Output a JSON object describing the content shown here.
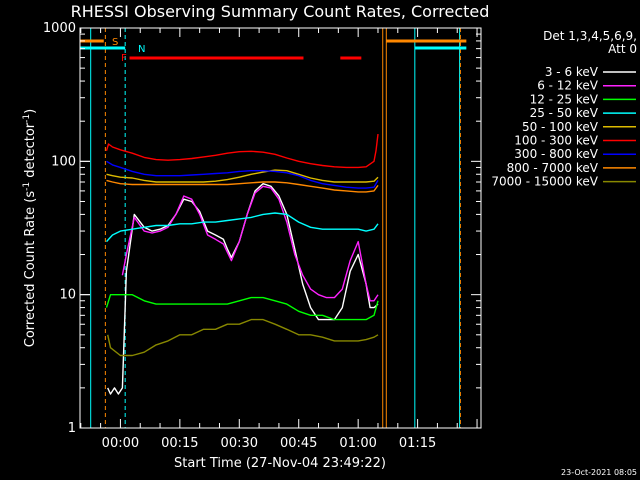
{
  "chart_data": {
    "type": "line",
    "title": "RHESSI Observing Summary Count Rates, Corrected",
    "xlabel": "Start Time (27-Nov-04 23:49:22)",
    "ylabel": "Corrected Count Rate (s⁻¹ detector⁻¹)",
    "ylabel_main": "Corrected Count Rate (s",
    "ylabel_sup1": "-1",
    "ylabel_mid": " detector",
    "ylabel_sup2": "-1",
    "ylabel_end": ")",
    "y_scale": "log",
    "ylim": [
      1,
      1000
    ],
    "xlim_minutes": [
      -10.2,
      91
    ],
    "x_ticks": [
      {
        "minutes": 0,
        "label": "00:00"
      },
      {
        "minutes": 15,
        "label": "00:15"
      },
      {
        "minutes": 30,
        "label": "00:30"
      },
      {
        "minutes": 45,
        "label": "00:45"
      },
      {
        "minutes": 60,
        "label": "01:00"
      },
      {
        "minutes": 75,
        "label": "01:15"
      }
    ],
    "y_ticks": [
      {
        "value": 1,
        "label": "1"
      },
      {
        "value": 10,
        "label": "10"
      },
      {
        "value": 100,
        "label": "100"
      },
      {
        "value": 1000,
        "label": "1000"
      }
    ],
    "legend_header": [
      "Det 1,3,4,5,6,9,",
      "Att 0"
    ],
    "legend_position": "right",
    "timestamp": "23-Oct-2021 08:05",
    "series": [
      {
        "name": "3 - 6 keV",
        "color": "#ffffff",
        "x": [
          -3.2,
          -2.5,
          -1.5,
          -0.5,
          0.5,
          1.5,
          3.5,
          6,
          8,
          10,
          12,
          14,
          16,
          18,
          20,
          22,
          24,
          26,
          27,
          28,
          30,
          32,
          34,
          36,
          38,
          40,
          42,
          44,
          46,
          48,
          50,
          52,
          54,
          56,
          58,
          60,
          62,
          63,
          64,
          65
        ],
        "y": [
          2,
          1.8,
          2,
          1.8,
          2,
          15,
          40,
          32,
          30,
          31,
          33,
          40,
          52,
          50,
          42,
          30,
          28,
          26,
          22,
          19,
          25,
          40,
          60,
          68,
          65,
          55,
          40,
          22,
          12,
          8,
          6.5,
          6.5,
          6.5,
          8,
          15,
          20,
          12,
          8,
          8,
          8.5
        ]
      },
      {
        "name": "6 - 12 keV",
        "color": "#ff22ff",
        "x": [
          0.5,
          1.5,
          3.5,
          6,
          8,
          10,
          12,
          14,
          16,
          18,
          20,
          22,
          24,
          26,
          28,
          30,
          32,
          34,
          36,
          38,
          40,
          42,
          44,
          46,
          48,
          50,
          52,
          54,
          56,
          58,
          60,
          62,
          63,
          64,
          65
        ],
        "y": [
          14,
          20,
          38,
          30,
          29,
          30,
          32,
          40,
          55,
          52,
          40,
          28,
          26,
          24,
          18,
          25,
          40,
          58,
          65,
          63,
          52,
          35,
          20,
          14,
          11,
          10,
          9.5,
          9.5,
          11,
          18,
          25,
          12,
          9,
          9,
          10
        ]
      },
      {
        "name": "12 - 25 keV",
        "color": "#00ff00",
        "x": [
          -3.5,
          -2.5,
          0,
          3,
          6,
          9,
          12,
          15,
          18,
          21,
          24,
          27,
          30,
          33,
          36,
          39,
          42,
          45,
          48,
          51,
          54,
          57,
          60,
          62,
          64,
          65
        ],
        "y": [
          8,
          10,
          10,
          10,
          9,
          8.5,
          8.5,
          8.5,
          8.5,
          8.5,
          8.5,
          8.5,
          9,
          9.5,
          9.5,
          9,
          8.5,
          7.5,
          7,
          7,
          6.5,
          6.5,
          6.5,
          6.5,
          7,
          9
        ]
      },
      {
        "name": "25 - 50 keV",
        "color": "#00ffff",
        "x": [
          -3.5,
          -2,
          0,
          3,
          6,
          9,
          12,
          15,
          18,
          21,
          24,
          27,
          30,
          33,
          36,
          39,
          42,
          45,
          48,
          51,
          54,
          57,
          60,
          62,
          64,
          65
        ],
        "y": [
          25,
          28,
          30,
          31,
          32,
          33,
          33,
          34,
          34,
          35,
          35,
          36,
          37,
          38,
          40,
          41,
          40,
          35,
          32,
          31,
          31,
          31,
          31,
          30,
          31,
          34
        ]
      },
      {
        "name": "50 - 100 keV",
        "color": "#ddbb00",
        "x": [
          -3.5,
          -2,
          0,
          3,
          6,
          9,
          12,
          15,
          18,
          21,
          24,
          27,
          30,
          33,
          36,
          39,
          42,
          45,
          48,
          51,
          54,
          57,
          60,
          62,
          64,
          65
        ],
        "y": [
          80,
          78,
          76,
          75,
          72,
          70,
          70,
          70,
          70,
          70,
          71,
          73,
          76,
          80,
          83,
          86,
          85,
          80,
          75,
          72,
          70,
          70,
          70,
          70,
          71,
          76
        ]
      },
      {
        "name": "100 - 300 keV",
        "color": "#ff0000",
        "x": [
          -3.5,
          -3,
          -2,
          0,
          3,
          6,
          9,
          12,
          15,
          18,
          21,
          24,
          27,
          30,
          33,
          36,
          39,
          42,
          45,
          48,
          51,
          54,
          57,
          60,
          62,
          64,
          64.5,
          65
        ],
        "y": [
          120,
          135,
          128,
          122,
          115,
          107,
          103,
          102,
          103,
          105,
          108,
          111,
          115,
          118,
          119,
          117,
          113,
          106,
          100,
          96,
          93,
          91,
          90,
          90,
          91,
          100,
          120,
          160
        ]
      },
      {
        "name": "300 - 800 keV",
        "color": "#0000ff",
        "x": [
          -3.5,
          -2,
          0,
          3,
          6,
          9,
          12,
          15,
          18,
          21,
          24,
          27,
          30,
          33,
          36,
          39,
          42,
          45,
          48,
          51,
          54,
          57,
          60,
          62,
          64,
          65
        ],
        "y": [
          100,
          94,
          90,
          84,
          80,
          78,
          78,
          78,
          79,
          80,
          81,
          82,
          84,
          85,
          85,
          84,
          82,
          78,
          72,
          68,
          66,
          64,
          63,
          63,
          64,
          72
        ]
      },
      {
        "name": "800 - 7000 keV",
        "color": "#ff8800",
        "x": [
          -3.5,
          -2,
          0,
          3,
          6,
          9,
          12,
          15,
          18,
          21,
          24,
          27,
          30,
          33,
          36,
          39,
          42,
          45,
          48,
          51,
          54,
          57,
          60,
          62,
          64,
          65
        ],
        "y": [
          72,
          70,
          68,
          67,
          67,
          67,
          67,
          67,
          67,
          67,
          67,
          67,
          68,
          69,
          70,
          70,
          69,
          67,
          65,
          63,
          61,
          60,
          59,
          59,
          60,
          66
        ]
      },
      {
        "name": "7000 - 15000 keV",
        "color": "#888800",
        "x": [
          -3.2,
          -2.5,
          0,
          3,
          6,
          9,
          12,
          15,
          18,
          21,
          24,
          27,
          30,
          33,
          36,
          39,
          42,
          45,
          48,
          51,
          54,
          57,
          60,
          62,
          64,
          65
        ],
        "y": [
          5,
          4,
          3.5,
          3.5,
          3.7,
          4.2,
          4.5,
          5,
          5,
          5.5,
          5.5,
          6,
          6,
          6.5,
          6.5,
          6,
          5.5,
          5,
          5,
          4.8,
          4.5,
          4.5,
          4.5,
          4.6,
          4.8,
          5
        ]
      }
    ],
    "markers": {
      "S": {
        "label": "S",
        "color": "#ff8800"
      },
      "N": {
        "label": "N",
        "color": "#00ffff"
      },
      "F": {
        "label": "F",
        "color": "#ff0000"
      }
    },
    "vertical_lines": [
      {
        "minutes": -7.5,
        "color": "#00ffff",
        "style": "solid"
      },
      {
        "minutes": -3.8,
        "color": "#ff8800",
        "style": "dashed"
      },
      {
        "minutes": 1.2,
        "color": "#00ffff",
        "style": "dashed"
      },
      {
        "minutes": 66.2,
        "color": "#ff8800",
        "style": "solid"
      },
      {
        "minutes": 67.1,
        "color": "#ff8800",
        "style": "solid"
      },
      {
        "minutes": 74.3,
        "color": "#00ffff",
        "style": "solid"
      },
      {
        "minutes": 85.6,
        "color": "#00ffff",
        "style": "solid"
      },
      {
        "minutes": 85.8,
        "color": "#ff8800",
        "style": "dashed"
      }
    ],
    "flag_bars": [
      {
        "flag": "S",
        "color": "#ff8800",
        "segments": [
          [
            -10.2,
            -4.2
          ],
          [
            67.1,
            87.3
          ]
        ]
      },
      {
        "flag": "N",
        "color": "#00ffff",
        "segments": [
          [
            -10.2,
            1.2
          ],
          [
            74.3,
            87.3
          ]
        ]
      },
      {
        "flag": "F",
        "color": "#ff0000",
        "segments": [
          [
            2.3,
            46.2
          ],
          [
            55.5,
            60.8
          ]
        ]
      }
    ]
  }
}
